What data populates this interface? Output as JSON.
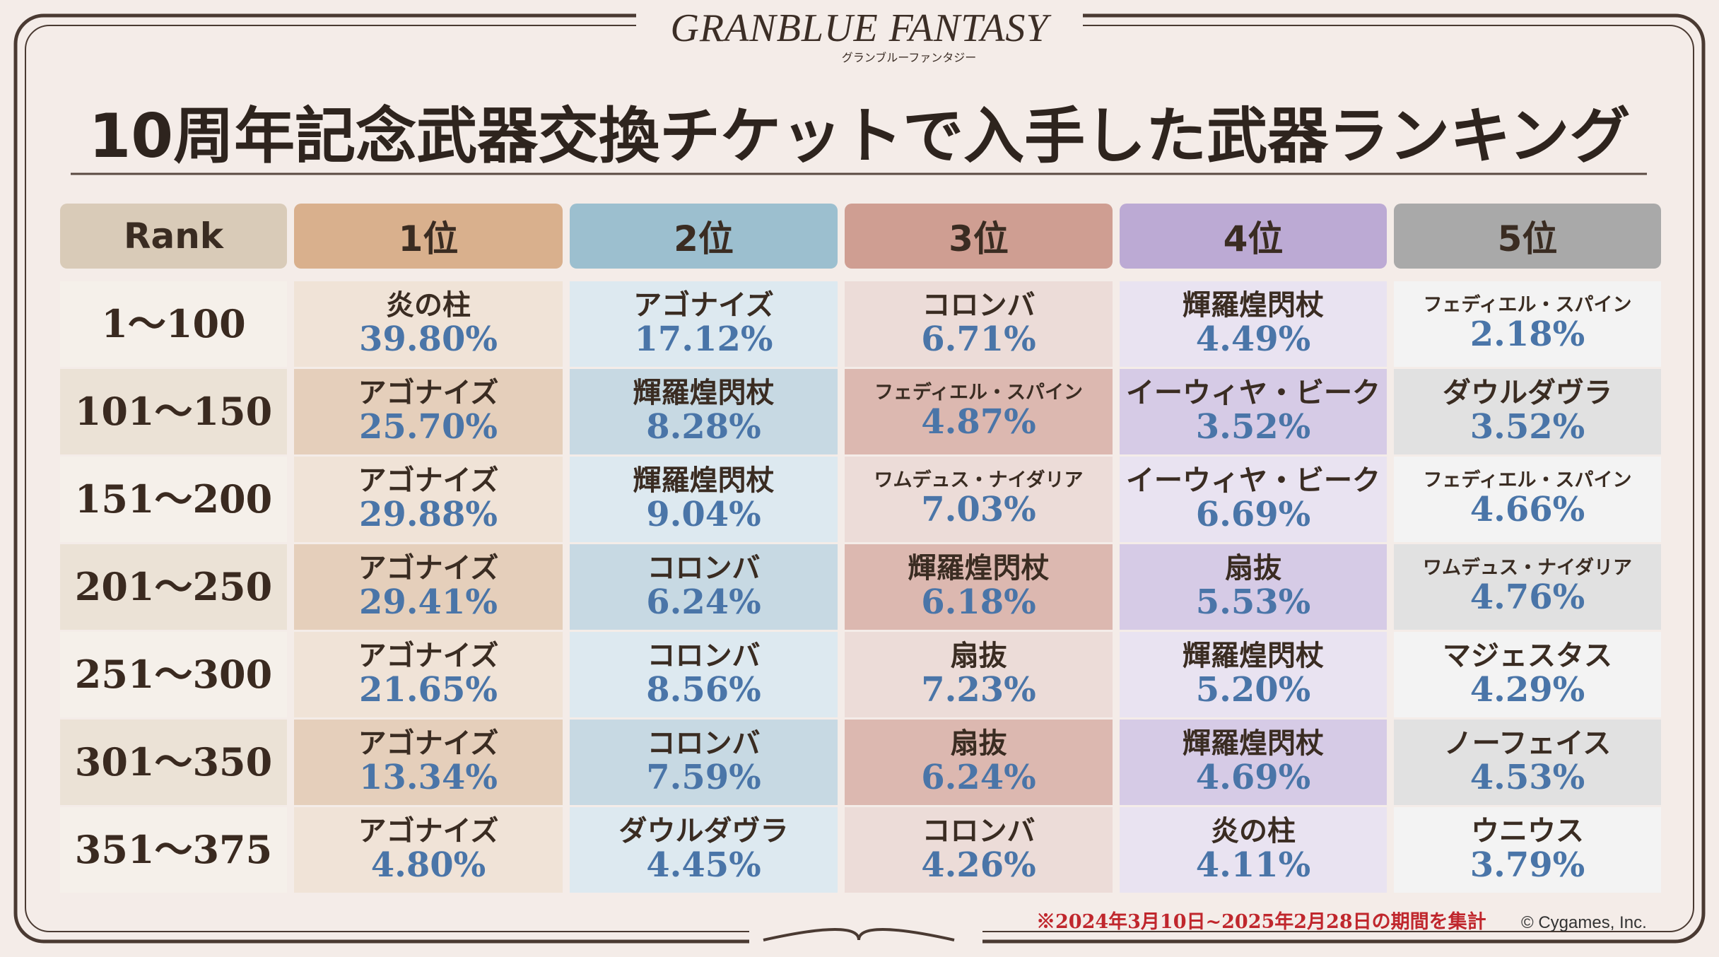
{
  "header": {
    "logo": "GRANBLUE FANTASY",
    "logo_sub": "グランブルーファンタジー",
    "title": "10周年記念武器交換チケットで入手した武器ランキング"
  },
  "table": {
    "headers": [
      "Rank",
      "1位",
      "2位",
      "3位",
      "4位",
      "5位"
    ],
    "rows": [
      {
        "rank": "1～100",
        "cells": [
          {
            "name": "炎の柱",
            "pct": "39.80%"
          },
          {
            "name": "アゴナイズ",
            "pct": "17.12%"
          },
          {
            "name": "コロンバ",
            "pct": "6.71%"
          },
          {
            "name": "輝羅煌閃杖",
            "pct": "4.49%"
          },
          {
            "name": "フェディエル・スパイン",
            "pct": "2.18%"
          }
        ]
      },
      {
        "rank": "101～150",
        "cells": [
          {
            "name": "アゴナイズ",
            "pct": "25.70%"
          },
          {
            "name": "輝羅煌閃杖",
            "pct": "8.28%"
          },
          {
            "name": "フェディエル・スパイン",
            "pct": "4.87%"
          },
          {
            "name": "イーウィヤ・ビーク",
            "pct": "3.52%"
          },
          {
            "name": "ダウルダヴラ",
            "pct": "3.52%"
          }
        ]
      },
      {
        "rank": "151～200",
        "cells": [
          {
            "name": "アゴナイズ",
            "pct": "29.88%"
          },
          {
            "name": "輝羅煌閃杖",
            "pct": "9.04%"
          },
          {
            "name": "ワムデュス・ナイダリア",
            "pct": "7.03%"
          },
          {
            "name": "イーウィヤ・ビーク",
            "pct": "6.69%"
          },
          {
            "name": "フェディエル・スパイン",
            "pct": "4.66%"
          }
        ]
      },
      {
        "rank": "201～250",
        "cells": [
          {
            "name": "アゴナイズ",
            "pct": "29.41%"
          },
          {
            "name": "コロンバ",
            "pct": "6.24%"
          },
          {
            "name": "輝羅煌閃杖",
            "pct": "6.18%"
          },
          {
            "name": "扇抜",
            "pct": "5.53%"
          },
          {
            "name": "ワムデュス・ナイダリア",
            "pct": "4.76%"
          }
        ]
      },
      {
        "rank": "251～300",
        "cells": [
          {
            "name": "アゴナイズ",
            "pct": "21.65%"
          },
          {
            "name": "コロンバ",
            "pct": "8.56%"
          },
          {
            "name": "扇抜",
            "pct": "7.23%"
          },
          {
            "name": "輝羅煌閃杖",
            "pct": "5.20%"
          },
          {
            "name": "マジェスタス",
            "pct": "4.29%"
          }
        ]
      },
      {
        "rank": "301～350",
        "cells": [
          {
            "name": "アゴナイズ",
            "pct": "13.34%"
          },
          {
            "name": "コロンバ",
            "pct": "7.59%"
          },
          {
            "name": "扇抜",
            "pct": "6.24%"
          },
          {
            "name": "輝羅煌閃杖",
            "pct": "4.69%"
          },
          {
            "name": "ノーフェイス",
            "pct": "4.53%"
          }
        ]
      },
      {
        "rank": "351～375",
        "cells": [
          {
            "name": "アゴナイズ",
            "pct": "4.80%"
          },
          {
            "name": "ダウルダヴラ",
            "pct": "4.45%"
          },
          {
            "name": "コロンバ",
            "pct": "4.26%"
          },
          {
            "name": "炎の柱",
            "pct": "4.11%"
          },
          {
            "name": "ウニウス",
            "pct": "3.79%"
          }
        ]
      }
    ]
  },
  "footer": {
    "note": "※2024年3月10日~2025年2月28日の期間を集計",
    "copyright": "© Cygames, Inc."
  }
}
